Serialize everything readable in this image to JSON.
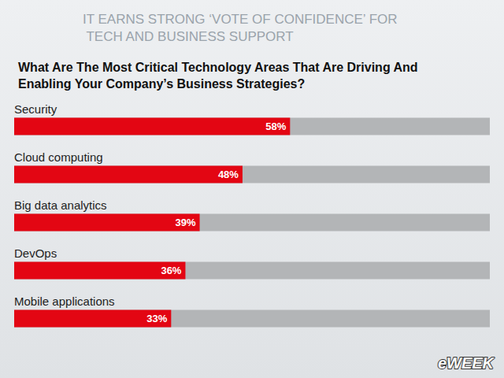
{
  "chart_data": {
    "type": "bar",
    "orientation": "horizontal",
    "title": "IT EARNS STRONG ‘VOTE OF CONFIDENCE’ FOR TECH AND BUSINESS SUPPORT",
    "subtitle": "What Are The Most Critical Technology Areas That Are Driving And Enabling Your Company’s Business Strategies?",
    "categories": [
      "Security",
      "Cloud computing",
      "Big data analytics",
      "DevOps",
      "Mobile applications"
    ],
    "values": [
      58,
      48,
      39,
      36,
      33
    ],
    "value_labels": [
      "58%",
      "48%",
      "39%",
      "36%",
      "33%"
    ],
    "color": "#e30613",
    "xlim": [
      0,
      100
    ],
    "grid": false,
    "data_labels": true,
    "tick_labels": "y",
    "annotations": [
      "eWEEK"
    ]
  }
}
